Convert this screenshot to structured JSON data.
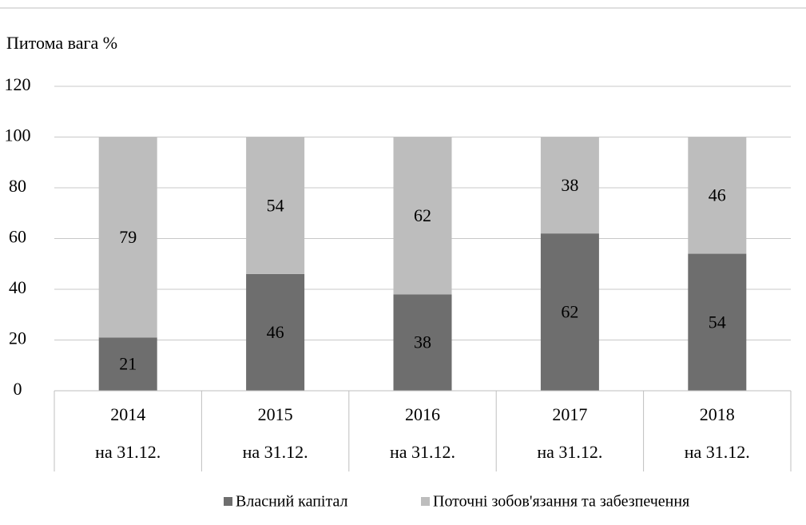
{
  "chart_data": {
    "type": "stacked_bar",
    "title": "Питома вага %",
    "categories": [
      "2014",
      "2015",
      "2016",
      "2017",
      "2018"
    ],
    "category_sublabels": [
      "на 31.12.",
      "на 31.12.",
      "на 31.12.",
      "на 31.12.",
      "на 31.12."
    ],
    "series": [
      {
        "name": "Власний капітал",
        "color": "#6e6e6e",
        "values": [
          21,
          46,
          38,
          62,
          54
        ]
      },
      {
        "name": "Поточні зобов'язання та забезпечення",
        "color": "#bdbdbd",
        "values": [
          79,
          54,
          62,
          38,
          46
        ]
      }
    ],
    "ylim": [
      0,
      120
    ],
    "yticks": [
      0,
      20,
      40,
      60,
      80,
      100,
      120
    ],
    "grid": true,
    "legend": "bottom"
  }
}
